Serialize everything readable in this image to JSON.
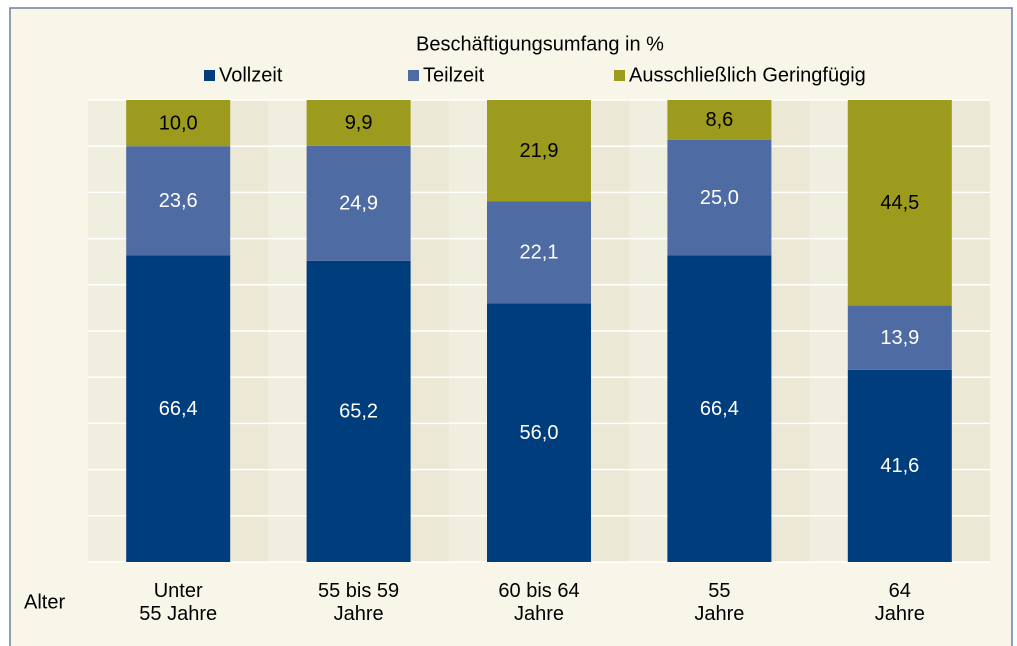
{
  "chart_data": {
    "type": "stacked_bar",
    "legend_title": "Beschäftigungsumfang in %",
    "x_label": "Alter",
    "categories": [
      "Unter\n55 Jahre",
      "55 bis 59\nJahre",
      "60 bis 64\nJahre",
      "55\nJahre",
      "64\nJahre"
    ],
    "series": [
      {
        "name": "Vollzeit",
        "color": "#003d7c",
        "label_color": "#ffffff",
        "values": [
          66.4,
          65.2,
          56.0,
          66.4,
          41.6
        ],
        "value_labels": [
          "66,4",
          "65,2",
          "56,0",
          "66,4",
          "41,6"
        ]
      },
      {
        "name": "Teilzeit",
        "color": "#4f6ba3",
        "label_color": "#ffffff",
        "values": [
          23.6,
          24.9,
          22.1,
          25.0,
          13.9
        ],
        "value_labels": [
          "23,6",
          "24,9",
          "22,1",
          "25,0",
          "13,9"
        ]
      },
      {
        "name": "Ausschließlich Geringfügig",
        "color": "#9c9b1e",
        "label_color": "#000000",
        "values": [
          10.0,
          9.9,
          21.9,
          8.6,
          44.5
        ],
        "value_labels": [
          "10,0",
          "9,9",
          "21,9",
          "8,6",
          "44,5"
        ]
      }
    ],
    "ylim": [
      0,
      100
    ],
    "yticks": [
      0,
      10,
      20,
      30,
      40,
      50,
      60,
      70,
      80,
      90,
      100
    ],
    "grid": true
  }
}
